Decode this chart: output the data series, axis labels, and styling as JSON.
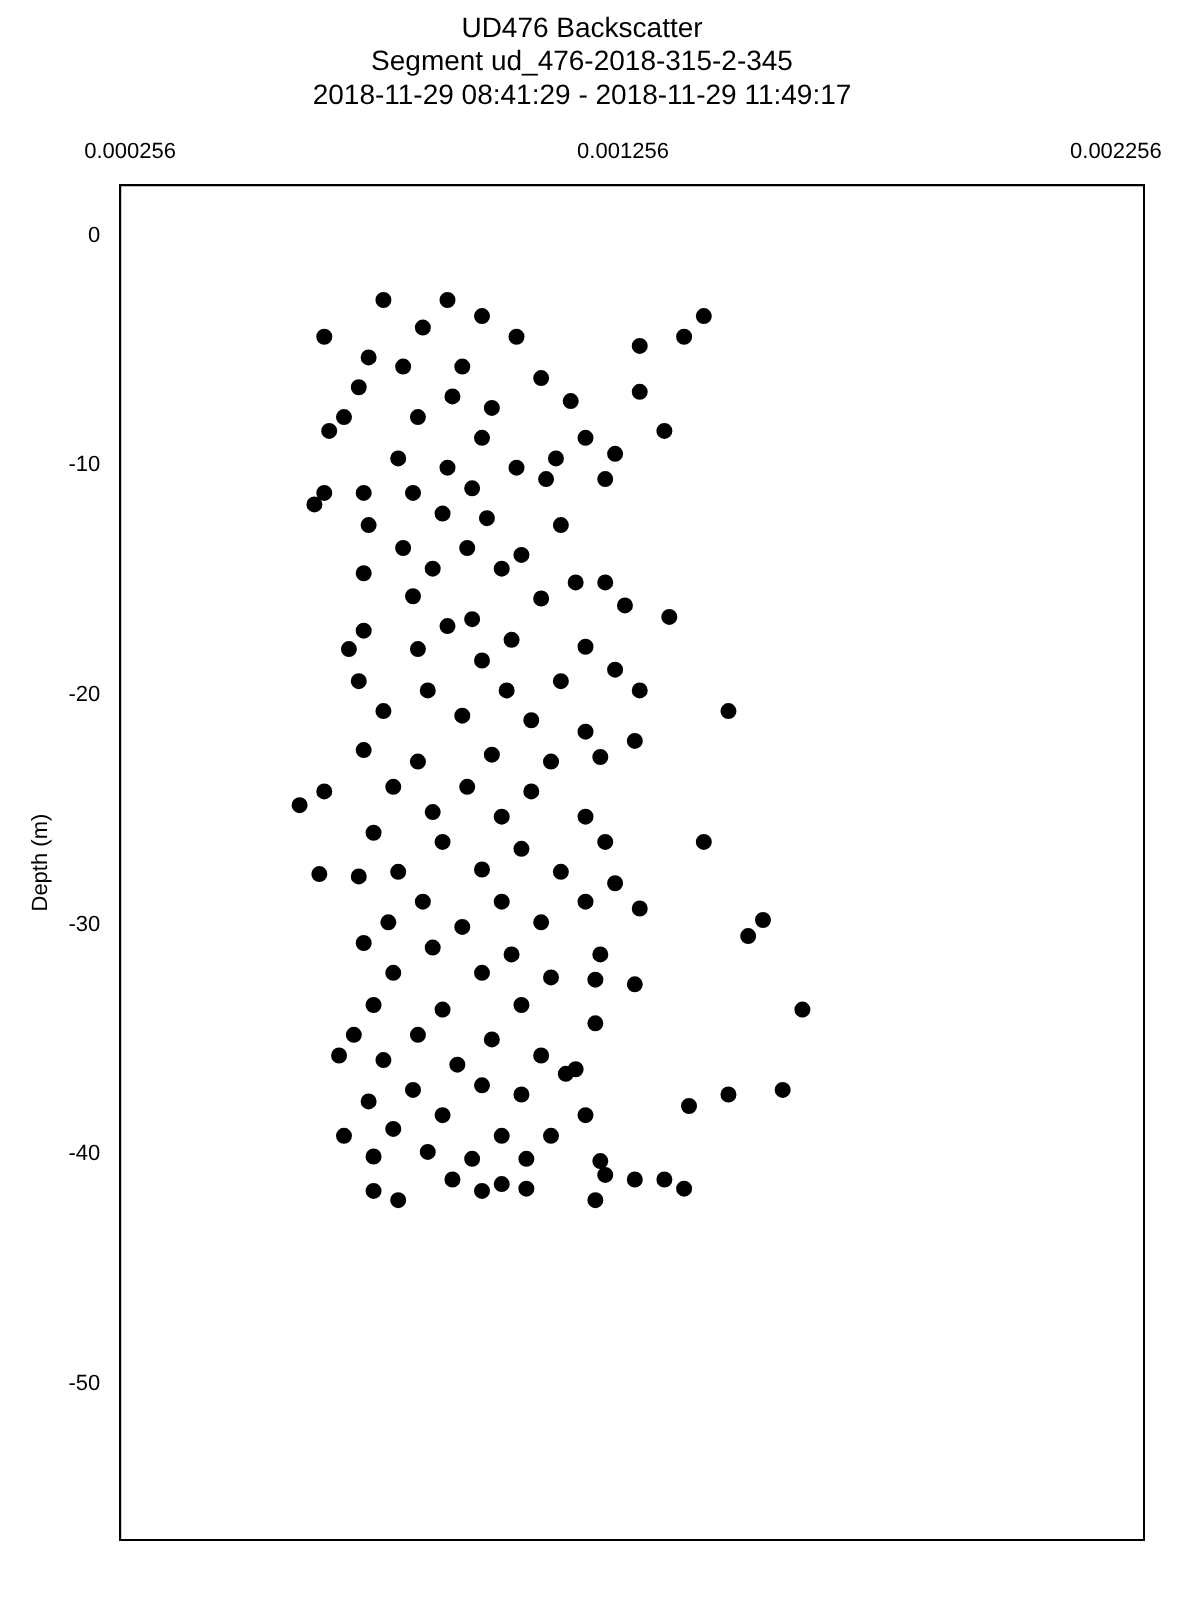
{
  "chart_data": {
    "type": "scatter",
    "title": "UD476 Backscatter",
    "subtitle": "Segment ud_476-2018-315-2-345\n2018-11-29 08:41:29 - 2018-11-29 11:49:17",
    "ylabel": "Depth (m)",
    "xlim": [
      0.000236,
      0.002313
    ],
    "xticks": [
      0.000256,
      0.001256,
      0.002256
    ],
    "ylim": [
      -56.8,
      2.2
    ],
    "yticks": [
      0,
      -10,
      -20,
      -30,
      -40,
      -50
    ],
    "grid": false,
    "legend": false,
    "marker": "circle",
    "series": [
      {
        "color": "#000000",
        "x": [
          0.00077,
          0.0009,
          0.00142,
          0.00065,
          0.00138,
          0.00129,
          0.00074,
          0.00085,
          0.00097,
          0.00104,
          0.00081,
          0.00093,
          0.00109,
          0.00072,
          0.00129,
          0.00091,
          0.00099,
          0.00115,
          0.00069,
          0.00084,
          0.00134,
          0.00066,
          0.00097,
          0.00118,
          0.0008,
          0.00104,
          0.0009,
          0.00124,
          0.00112,
          0.00065,
          0.00073,
          0.00063,
          0.00083,
          0.00095,
          0.0011,
          0.00122,
          0.00074,
          0.00089,
          0.00098,
          0.00113,
          0.00081,
          0.00094,
          0.00105,
          0.00073,
          0.00087,
          0.00101,
          0.00122,
          0.00116,
          0.00083,
          0.00109,
          0.00126,
          0.00095,
          0.00135,
          0.00073,
          0.0009,
          0.00103,
          0.00118,
          0.0007,
          0.00084,
          0.00097,
          0.00124,
          0.00072,
          0.00086,
          0.00102,
          0.00113,
          0.00129,
          0.00147,
          0.00077,
          0.00093,
          0.00107,
          0.00118,
          0.00128,
          0.00073,
          0.00084,
          0.00099,
          0.00111,
          0.00121,
          0.00065,
          0.00079,
          0.00094,
          0.00107,
          0.0006,
          0.00087,
          0.00101,
          0.00118,
          0.00075,
          0.00089,
          0.00105,
          0.00142,
          0.00122,
          0.0008,
          0.00097,
          0.00113,
          0.00064,
          0.00072,
          0.00124,
          0.00085,
          0.00101,
          0.00118,
          0.00129,
          0.00078,
          0.00093,
          0.00109,
          0.00154,
          0.00151,
          0.00073,
          0.00087,
          0.00103,
          0.00121,
          0.00079,
          0.00097,
          0.00111,
          0.00128,
          0.0012,
          0.00075,
          0.00089,
          0.00105,
          0.00162,
          0.00071,
          0.00084,
          0.00099,
          0.0012,
          0.00068,
          0.00077,
          0.00092,
          0.00109,
          0.00114,
          0.00116,
          0.00083,
          0.00097,
          0.00105,
          0.00158,
          0.00147,
          0.00139,
          0.00074,
          0.00089,
          0.00118,
          0.00079,
          0.00101,
          0.00111,
          0.00075,
          0.00086,
          0.00095,
          0.00106,
          0.00121,
          0.00122,
          0.00134,
          0.00128,
          0.00138,
          0.00075,
          0.0008,
          0.00097,
          0.00106,
          0.0012,
          0.00091,
          0.00069,
          0.00101
        ],
        "values": [
          -2.8,
          -2.8,
          -3.5,
          -4.4,
          -4.4,
          -4.8,
          -5.3,
          -4.0,
          -3.5,
          -4.4,
          -5.7,
          -5.7,
          -6.2,
          -6.6,
          -6.8,
          -7.0,
          -7.5,
          -7.2,
          -7.9,
          -7.9,
          -8.5,
          -8.5,
          -8.8,
          -8.8,
          -9.7,
          -10.1,
          -10.1,
          -9.5,
          -9.7,
          -11.2,
          -11.2,
          -11.7,
          -11.2,
          -11.0,
          -10.6,
          -10.6,
          -12.6,
          -12.1,
          -12.3,
          -12.6,
          -13.6,
          -13.6,
          -13.9,
          -14.7,
          -14.5,
          -14.5,
          -15.1,
          -15.1,
          -15.7,
          -15.8,
          -16.1,
          -16.7,
          -16.6,
          -17.2,
          -17.0,
          -17.6,
          -17.9,
          -18.0,
          -18.0,
          -18.5,
          -18.9,
          -19.4,
          -19.8,
          -19.8,
          -19.4,
          -19.8,
          -20.7,
          -20.7,
          -20.9,
          -21.1,
          -21.6,
          -22.0,
          -22.4,
          -22.9,
          -22.6,
          -22.9,
          -22.7,
          -24.2,
          -24.0,
          -24.0,
          -24.2,
          -24.8,
          -25.1,
          -25.3,
          -25.3,
          -26.0,
          -26.4,
          -26.7,
          -26.4,
          -26.4,
          -27.7,
          -27.6,
          -27.7,
          -27.8,
          -27.9,
          -28.2,
          -29.0,
          -29.0,
          -29.0,
          -29.3,
          -29.9,
          -30.1,
          -29.9,
          -29.8,
          -30.5,
          -30.8,
          -31.0,
          -31.3,
          -31.3,
          -32.1,
          -32.1,
          -32.3,
          -32.6,
          -32.4,
          -33.5,
          -33.7,
          -33.5,
          -33.7,
          -34.8,
          -34.8,
          -35.0,
          -34.3,
          -35.7,
          -35.9,
          -36.1,
          -35.7,
          -36.5,
          -36.3,
          -37.2,
          -37.0,
          -37.4,
          -37.2,
          -37.4,
          -37.9,
          -37.7,
          -38.3,
          -38.3,
          -38.9,
          -39.2,
          -39.2,
          -40.1,
          -39.9,
          -40.2,
          -40.2,
          -40.3,
          -40.9,
          -41.1,
          -41.1,
          -41.5,
          -41.6,
          -42.0,
          -41.6,
          -41.5,
          -42.0,
          -41.1,
          -39.2,
          -41.3
        ]
      }
    ]
  }
}
